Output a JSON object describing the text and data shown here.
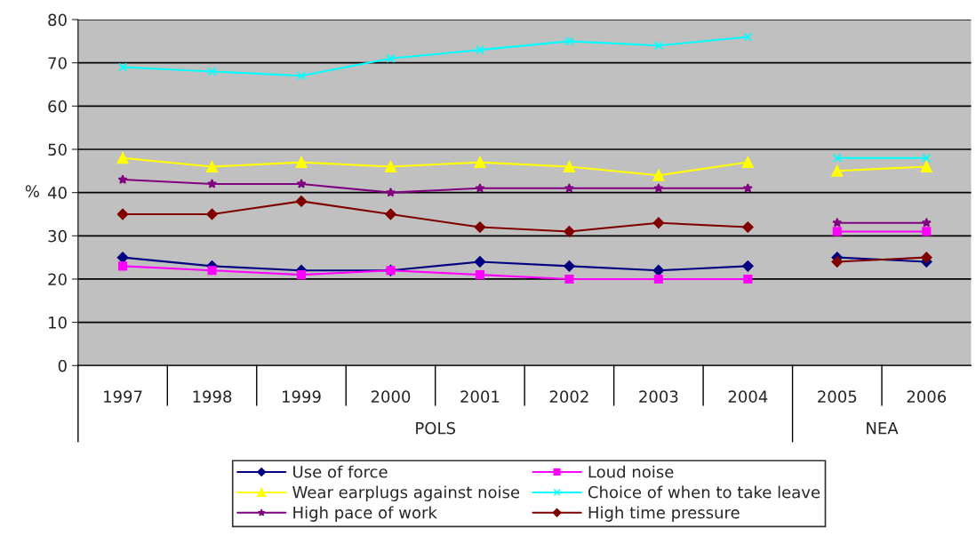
{
  "chart_data": {
    "type": "line",
    "ylabel": "%",
    "categories": [
      "1997",
      "1998",
      "1999",
      "2000",
      "2001",
      "2002",
      "2003",
      "2004",
      "2005",
      "2006"
    ],
    "annotations": [
      "POLS",
      "NEA"
    ],
    "series": [
      {
        "name": "Use of force",
        "color": "#000080",
        "marker": "diamond",
        "values": [
          25,
          23,
          22,
          22,
          24,
          23,
          22,
          23,
          null,
          null
        ]
      },
      {
        "name": "Loud noise",
        "color": "#ff00ff",
        "marker": "square",
        "values": [
          23,
          22,
          21,
          22,
          21,
          20,
          20,
          20,
          null,
          null
        ]
      },
      {
        "name": "Wear earplugs against noise",
        "color": "#ffff00",
        "marker": "triangle",
        "values": [
          48,
          46,
          47,
          46,
          47,
          46,
          44,
          47,
          null,
          null
        ]
      },
      {
        "name": "Choice of when to take leave",
        "color": "#00ffff",
        "marker": "cross",
        "values": [
          69,
          68,
          67,
          71,
          73,
          75,
          74,
          76,
          null,
          null
        ]
      },
      {
        "name": "High pace of work",
        "color": "#800080",
        "marker": "star",
        "values": [
          43,
          42,
          42,
          40,
          41,
          41,
          41,
          41,
          null,
          null
        ]
      },
      {
        "name": "High time pressure",
        "color": "#800000",
        "marker": "diamond",
        "values": [
          35,
          35,
          38,
          35,
          32,
          31,
          33,
          32,
          null,
          null
        ]
      },
      {
        "color": "#000080",
        "marker": "diamond",
        "values": [
          null,
          null,
          null,
          null,
          null,
          null,
          null,
          null,
          25,
          24
        ]
      },
      {
        "color": "#ff00ff",
        "marker": "square",
        "values": [
          null,
          null,
          null,
          null,
          null,
          null,
          null,
          null,
          31,
          31
        ]
      },
      {
        "color": "#ffff00",
        "marker": "triangle",
        "values": [
          null,
          null,
          null,
          null,
          null,
          null,
          null,
          null,
          45,
          46
        ]
      },
      {
        "color": "#00ffff",
        "marker": "cross",
        "values": [
          null,
          null,
          null,
          null,
          null,
          null,
          null,
          null,
          48,
          48
        ]
      },
      {
        "color": "#800080",
        "marker": "star",
        "values": [
          null,
          null,
          null,
          null,
          null,
          null,
          null,
          null,
          33,
          33
        ]
      },
      {
        "color": "#800000",
        "marker": "diamond",
        "values": [
          null,
          null,
          null,
          null,
          null,
          null,
          null,
          null,
          24,
          25
        ]
      }
    ],
    "ylim": [
      0,
      80
    ],
    "yticks": [
      0,
      10,
      20,
      30,
      40,
      50,
      60,
      70,
      80
    ],
    "grid": "y",
    "legend": "bottom"
  }
}
